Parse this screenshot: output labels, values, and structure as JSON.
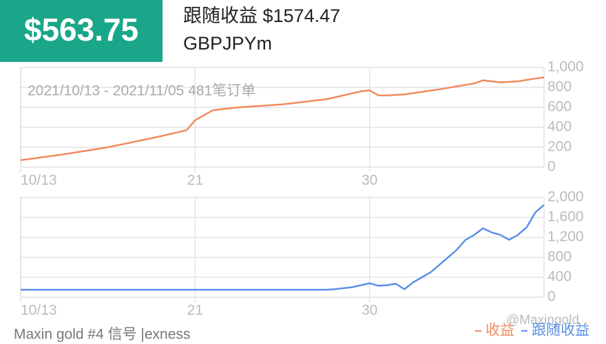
{
  "header": {
    "amount": "$563.75",
    "follow_profit": "跟随收益 $1574.47",
    "symbol": "GBPJPYm"
  },
  "chart_data": [
    {
      "type": "line",
      "subtitle": "2021/10/13 - 2021/11/05 481笔订单",
      "categories": [
        "10/13",
        null,
        null,
        null,
        null,
        null,
        null,
        null,
        null,
        null,
        null,
        null,
        null,
        null,
        null,
        null,
        null,
        null,
        null,
        null,
        "21",
        null,
        null,
        null,
        null,
        null,
        null,
        null,
        null,
        null,
        null,
        null,
        null,
        null,
        null,
        null,
        null,
        null,
        null,
        null,
        "30",
        null,
        null,
        null,
        null,
        null,
        null,
        null,
        null,
        null,
        null,
        null,
        null,
        null,
        null,
        null,
        null,
        null,
        null,
        null,
        null
      ],
      "series": [
        {
          "name": "收益",
          "color": "#f08a5d",
          "values": [
            70,
            82,
            94,
            106,
            118,
            130,
            144,
            158,
            172,
            186,
            200,
            218,
            236,
            254,
            272,
            290,
            310,
            330,
            350,
            370,
            470,
            520,
            570,
            580,
            590,
            600,
            606,
            612,
            618,
            624,
            630,
            640,
            650,
            660,
            670,
            680,
            700,
            720,
            740,
            760,
            770,
            720,
            720,
            725,
            730,
            742,
            755,
            768,
            780,
            795,
            810,
            825,
            840,
            870,
            860,
            850,
            855,
            860,
            875,
            888,
            900
          ]
        }
      ],
      "ylim": [
        0,
        1000
      ],
      "yticks": [
        0,
        200,
        400,
        600,
        800,
        {
          "value": 1000,
          "label": "1,000"
        }
      ],
      "grid": true
    },
    {
      "type": "line",
      "categories": [
        "10/13",
        null,
        null,
        null,
        null,
        null,
        null,
        null,
        null,
        null,
        null,
        null,
        null,
        null,
        null,
        null,
        null,
        null,
        null,
        null,
        "21",
        null,
        null,
        null,
        null,
        null,
        null,
        null,
        null,
        null,
        null,
        null,
        null,
        null,
        null,
        null,
        null,
        null,
        null,
        null,
        "30",
        null,
        null,
        null,
        null,
        null,
        null,
        null,
        null,
        null,
        null,
        null,
        null,
        null,
        null,
        null,
        null,
        null,
        null,
        null,
        null
      ],
      "series": [
        {
          "name": "跟随收益",
          "color": "#5b8fe6",
          "values": [
            150,
            150,
            150,
            150,
            150,
            150,
            150,
            150,
            150,
            150,
            150,
            150,
            150,
            150,
            150,
            150,
            150,
            150,
            150,
            150,
            150,
            150,
            150,
            150,
            150,
            150,
            150,
            150,
            150,
            150,
            150,
            150,
            150,
            150,
            150,
            150,
            160,
            180,
            200,
            240,
            280,
            230,
            240,
            270,
            160,
            300,
            400,
            500,
            650,
            800,
            950,
            1150,
            1250,
            1380,
            1300,
            1250,
            1150,
            1250,
            1400,
            1700,
            1850
          ]
        }
      ],
      "ylim": [
        0,
        2000
      ],
      "yticks": [
        0,
        400,
        800,
        {
          "value": 1200,
          "label": "1,200"
        },
        {
          "value": 1600,
          "label": "1,600"
        },
        {
          "value": 2000,
          "label": "2,000"
        }
      ],
      "grid": true
    }
  ],
  "footer": {
    "signal": "Maxin gold #4 信号 |exness",
    "watermark": "@Maxingold"
  }
}
